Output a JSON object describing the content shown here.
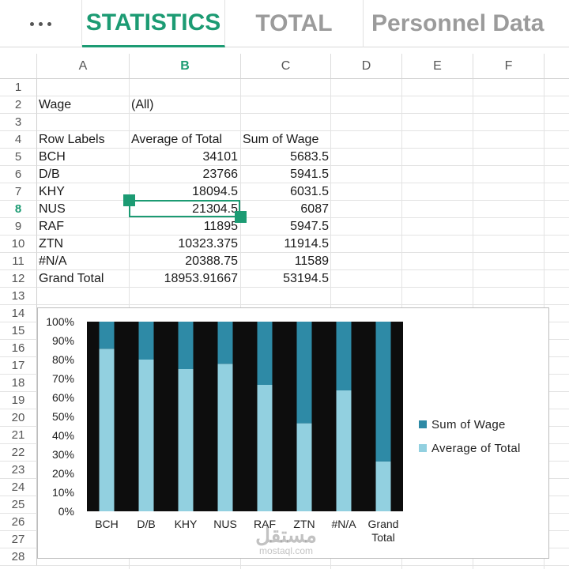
{
  "tabs": {
    "more_icon": "more-horizontal-icon",
    "items": [
      "STATISTICS",
      "TOTAL",
      "Personnel Data"
    ],
    "active": "STATISTICS",
    "accent": "#1c9b73"
  },
  "columns": [
    "A",
    "B",
    "C",
    "D",
    "E",
    "F"
  ],
  "selected_column": "B",
  "rows": [
    "1",
    "2",
    "3",
    "4",
    "5",
    "6",
    "7",
    "8",
    "9",
    "10",
    "11",
    "12",
    "13",
    "14",
    "15",
    "16",
    "17",
    "18",
    "19",
    "20",
    "21",
    "22",
    "23",
    "24",
    "25",
    "26",
    "27",
    "28"
  ],
  "selected_row": "8",
  "filter": {
    "label": "Wage",
    "value": "(All)"
  },
  "pivot": {
    "headers": [
      "Row Labels",
      "Average of Total",
      "Sum of Wage"
    ],
    "data": [
      [
        "BCH",
        "34101",
        "5683.5"
      ],
      [
        "D/B",
        "23766",
        "5941.5"
      ],
      [
        "KHY",
        "18094.5",
        "6031.5"
      ],
      [
        "NUS",
        "21304.5",
        "6087"
      ],
      [
        "RAF",
        "11895",
        "5947.5"
      ],
      [
        "ZTN",
        "10323.375",
        "11914.5"
      ],
      [
        "#N/A",
        "20388.75",
        "11589"
      ],
      [
        "Grand Total",
        "18953.91667",
        "53194.5"
      ]
    ]
  },
  "chart_data": {
    "type": "bar",
    "stacked": "percent",
    "categories": [
      "BCH",
      "D/B",
      "KHY",
      "NUS",
      "RAF",
      "ZTN",
      "#N/A",
      "Grand Total"
    ],
    "series": [
      {
        "name": "Average of Total",
        "values": [
          34101,
          23766,
          18094.5,
          21304.5,
          11895,
          10323.375,
          20388.75,
          18953.91667
        ],
        "color": "#92d0e0"
      },
      {
        "name": "Sum of Wage",
        "values": [
          5683.5,
          5941.5,
          6031.5,
          6087,
          5947.5,
          11914.5,
          11589,
          53194.5
        ],
        "color": "#2e8aa6"
      }
    ],
    "y_ticks": [
      "0%",
      "10%",
      "20%",
      "30%",
      "40%",
      "50%",
      "60%",
      "70%",
      "80%",
      "90%",
      "100%"
    ],
    "ylim": [
      0,
      100
    ],
    "legend": "right",
    "plot_background": "#0d0d0d"
  },
  "watermark": {
    "arabic": "مستقل",
    "latin": "mostaql.com"
  }
}
